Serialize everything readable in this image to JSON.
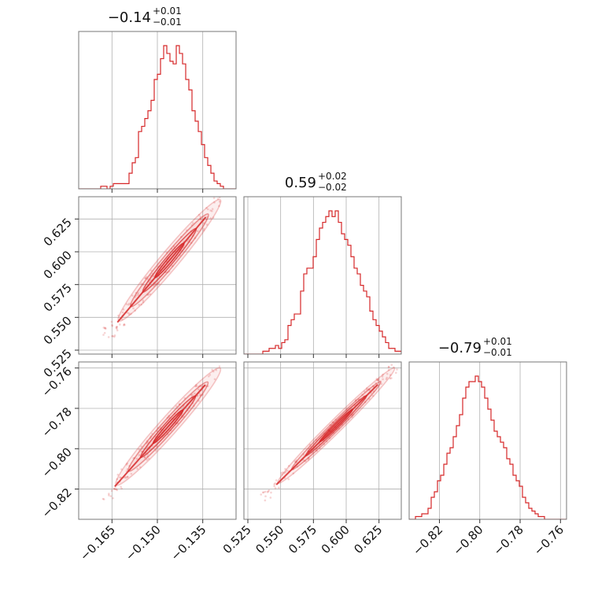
{
  "chart_data": {
    "type": "corner",
    "color": "#d62728",
    "grid": true,
    "parameters": [
      {
        "title": {
          "main": "−0.14",
          "upper": "+0.01",
          "lower": "−0.01"
        },
        "range": [
          -0.176,
          -0.124
        ]
      },
      {
        "title": {
          "main": "0.59",
          "upper": "+0.02",
          "lower": "−0.02"
        },
        "range": [
          0.522,
          0.642
        ]
      },
      {
        "title": {
          "main": "−0.79",
          "upper": "+0.01",
          "lower": "−0.01"
        },
        "range": [
          -0.835,
          -0.757
        ]
      }
    ],
    "ticks": [
      {
        "values": [
          -0.165,
          -0.15,
          -0.135
        ],
        "labels": [
          "−0.165",
          "−0.150",
          "−0.135"
        ]
      },
      {
        "values": [
          0.525,
          0.55,
          0.575,
          0.6,
          0.625
        ],
        "labels": [
          "0.525",
          "0.550",
          "0.575",
          "0.600",
          "0.625"
        ]
      },
      {
        "values": [
          -0.82,
          -0.8,
          -0.78,
          -0.76
        ],
        "labels": [
          "−0.82",
          "−0.80",
          "−0.78",
          "−0.76"
        ]
      }
    ],
    "histograms": [
      {
        "bins": 50,
        "counts": [
          0,
          0,
          0,
          0,
          0,
          0,
          0,
          1,
          1,
          0,
          1,
          2,
          2,
          2,
          2,
          2,
          6,
          10,
          12,
          22,
          24,
          27,
          30,
          34,
          42,
          44,
          50,
          55,
          52,
          49,
          48,
          55,
          52,
          48,
          42,
          38,
          30,
          26,
          22,
          17,
          12,
          9,
          6,
          3,
          2,
          1,
          0,
          0,
          0,
          0
        ]
      },
      {
        "bins": 50,
        "counts": [
          0,
          0,
          0,
          0,
          0,
          0,
          1,
          1,
          2,
          2,
          3,
          2,
          4,
          5,
          10,
          12,
          14,
          14,
          22,
          28,
          30,
          30,
          34,
          40,
          44,
          46,
          48,
          50,
          48,
          50,
          46,
          42,
          40,
          38,
          34,
          30,
          28,
          24,
          22,
          20,
          15,
          12,
          10,
          8,
          6,
          4,
          2,
          2,
          1,
          1
        ]
      },
      {
        "bins": 50,
        "counts": [
          0,
          0,
          1,
          1,
          2,
          2,
          4,
          8,
          10,
          14,
          16,
          20,
          24,
          26,
          30,
          34,
          38,
          44,
          48,
          50,
          50,
          52,
          50,
          48,
          44,
          40,
          36,
          32,
          30,
          28,
          26,
          22,
          20,
          16,
          14,
          12,
          8,
          6,
          4,
          3,
          2,
          1,
          1,
          0,
          0,
          0,
          0,
          0,
          0,
          0
        ]
      }
    ],
    "pairs": [
      {
        "x": 0,
        "y": 1,
        "line": [
          [
            -0.168,
            0.533
          ],
          [
            -0.128,
            0.643
          ]
        ],
        "width": 0.007
      },
      {
        "x": 0,
        "y": 2,
        "line": [
          [
            -0.169,
            -0.827
          ],
          [
            -0.128,
            -0.758
          ]
        ],
        "width": 0.0045
      },
      {
        "x": 1,
        "y": 2,
        "line": [
          [
            0.534,
            -0.826
          ],
          [
            0.64,
            -0.758
          ]
        ],
        "width": 0.0032
      }
    ]
  }
}
